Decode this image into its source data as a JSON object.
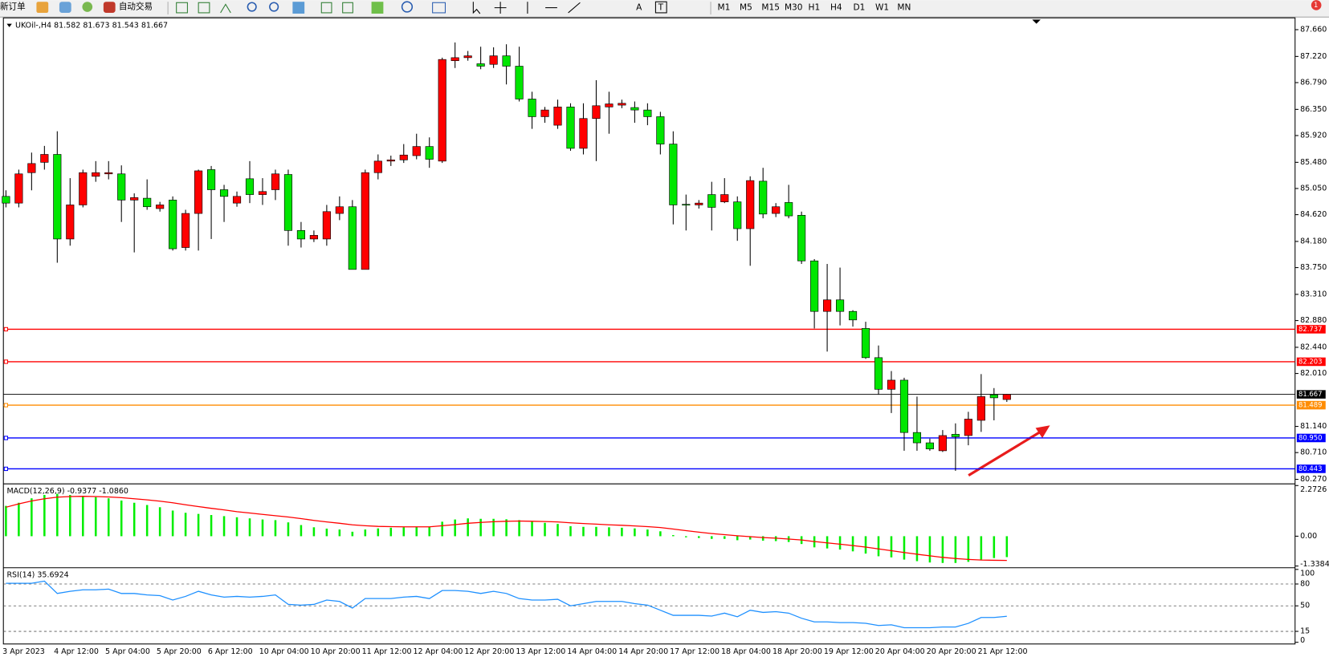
{
  "toolbar": {
    "new_order": "新订单",
    "auto_trade": "自动交易",
    "text_tools": [
      "A",
      "T"
    ],
    "timeframes": [
      "M1",
      "M5",
      "M15",
      "M30",
      "H1",
      "H4",
      "D1",
      "W1",
      "MN"
    ],
    "alert_count": 1
  },
  "chart_data": [
    {
      "type": "candlestick",
      "title": "UKOil-,H4 81.582 81.673 81.543 81.667",
      "categories": [
        "3 Apr 2023",
        null,
        null,
        null,
        "4 Apr 12:00",
        null,
        null,
        null,
        "5 Apr 04:00",
        null,
        null,
        null,
        "5 Apr 20:00",
        null,
        null,
        null,
        "6 Apr 12:00",
        null,
        null,
        null,
        "10 Apr 04:00",
        null,
        null,
        null,
        "10 Apr 20:00",
        null,
        null,
        null,
        "11 Apr 12:00",
        null,
        null,
        null,
        "12 Apr 04:00",
        null,
        null,
        null,
        "12 Apr 20:00",
        null,
        null,
        null,
        "13 Apr 12:00",
        null,
        null,
        null,
        "14 Apr 04:00",
        null,
        null,
        null,
        "14 Apr 20:00",
        null,
        null,
        null,
        "17 Apr 12:00",
        null,
        null,
        null,
        "18 Apr 04:00",
        null,
        null,
        null,
        "18 Apr 20:00",
        null,
        null,
        null,
        "19 Apr 12:00",
        null,
        null,
        null,
        "20 Apr 04:00",
        null,
        null,
        null,
        "20 Apr 20:00",
        null,
        null,
        null,
        "21 Apr 12:00",
        null,
        null
      ],
      "open": [
        84.92,
        84.81,
        85.31,
        85.48,
        85.61,
        84.22,
        84.78,
        85.25,
        85.29,
        85.29,
        84.86,
        84.89,
        84.72,
        84.86,
        84.08,
        84.64,
        85.36,
        85.03,
        84.81,
        85.21,
        84.95,
        85.03,
        85.28,
        84.36,
        84.22,
        84.22,
        84.64,
        84.75,
        83.72,
        85.31,
        85.5,
        85.52,
        85.59,
        85.74,
        85.5,
        87.15,
        87.2,
        87.1,
        87.09,
        87.23,
        87.06,
        86.52,
        86.23,
        86.09,
        86.39,
        85.71,
        86.2,
        86.39,
        86.42,
        86.38,
        86.34,
        86.23,
        85.78,
        84.79,
        84.78,
        84.95,
        84.83,
        84.83,
        84.39,
        85.17,
        84.64,
        84.82,
        84.61,
        83.86,
        83.03,
        83.22,
        83.03,
        82.75,
        82.27,
        81.75,
        81.9,
        81.04,
        80.87,
        80.74,
        81.01,
        80.99,
        81.24,
        81.66,
        81.582
      ],
      "high": [
        85.02,
        85.36,
        85.64,
        85.75,
        85.99,
        85.22,
        85.36,
        85.5,
        85.5,
        85.43,
        84.97,
        85.2,
        84.83,
        84.92,
        84.7,
        85.36,
        85.42,
        85.11,
        85.0,
        85.5,
        85.22,
        85.36,
        85.36,
        84.5,
        84.36,
        84.78,
        84.92,
        84.86,
        85.36,
        85.61,
        85.59,
        85.78,
        85.95,
        85.89,
        87.2,
        87.45,
        87.31,
        87.38,
        87.37,
        87.42,
        87.38,
        86.64,
        86.39,
        86.51,
        86.45,
        86.45,
        86.83,
        86.64,
        86.51,
        86.48,
        86.45,
        86.31,
        85.99,
        84.95,
        84.86,
        85.16,
        85.22,
        84.92,
        85.25,
        85.39,
        84.81,
        85.11,
        84.67,
        83.89,
        83.81,
        83.75,
        83.05,
        82.86,
        82.47,
        82.05,
        81.94,
        81.63,
        80.94,
        81.08,
        81.19,
        81.38,
        82.0,
        81.77,
        81.673
      ],
      "low": [
        84.74,
        84.74,
        85.02,
        85.36,
        83.83,
        84.11,
        84.74,
        85.16,
        85.2,
        84.5,
        84.0,
        84.7,
        84.67,
        84.03,
        84.03,
        84.03,
        84.22,
        84.5,
        84.75,
        84.81,
        84.78,
        84.86,
        84.11,
        84.08,
        84.17,
        84.11,
        84.53,
        83.72,
        83.72,
        85.2,
        85.42,
        85.47,
        85.53,
        85.39,
        85.47,
        87.03,
        87.15,
        87.01,
        87.03,
        86.76,
        86.48,
        86.03,
        86.13,
        86.03,
        85.67,
        85.61,
        85.5,
        85.95,
        86.37,
        86.13,
        86.09,
        85.61,
        84.46,
        84.36,
        84.72,
        84.36,
        84.81,
        84.19,
        83.78,
        84.56,
        84.58,
        84.56,
        83.81,
        82.75,
        82.37,
        82.8,
        82.78,
        82.25,
        81.66,
        81.36,
        80.74,
        80.74,
        80.74,
        80.72,
        80.41,
        80.83,
        81.05,
        81.24,
        81.543
      ],
      "close": [
        84.81,
        85.29,
        85.46,
        85.61,
        84.22,
        84.78,
        85.31,
        85.31,
        85.31,
        84.86,
        84.9,
        84.75,
        84.78,
        84.06,
        84.64,
        85.34,
        85.03,
        84.92,
        84.92,
        84.95,
        85.0,
        85.29,
        84.36,
        84.22,
        84.28,
        84.67,
        84.75,
        83.72,
        85.31,
        85.5,
        85.52,
        85.6,
        85.74,
        85.53,
        87.17,
        87.2,
        87.23,
        87.06,
        87.23,
        87.06,
        86.52,
        86.23,
        86.34,
        86.39,
        85.71,
        86.2,
        86.41,
        86.44,
        86.45,
        86.34,
        86.23,
        85.78,
        84.78,
        84.78,
        84.81,
        84.74,
        84.95,
        84.39,
        85.18,
        84.63,
        84.75,
        84.6,
        83.86,
        83.03,
        83.22,
        83.03,
        82.89,
        82.27,
        81.75,
        81.9,
        81.04,
        80.87,
        80.77,
        80.99,
        80.97,
        81.26,
        81.63,
        81.61,
        81.667
      ],
      "up_color": "#ff0000",
      "down_color": "#00e600",
      "ylim": [
        80.21,
        87.84
      ],
      "yticks": [
        {
          "value": 87.66,
          "label": "87.660"
        },
        {
          "value": 87.22,
          "label": "87.220"
        },
        {
          "value": 86.79,
          "label": "86.790"
        },
        {
          "value": 86.35,
          "label": "86.350"
        },
        {
          "value": 85.92,
          "label": "85.920"
        },
        {
          "value": 85.48,
          "label": "85.480"
        },
        {
          "value": 85.05,
          "label": "85.050"
        },
        {
          "value": 84.62,
          "label": "84.620"
        },
        {
          "value": 84.18,
          "label": "84.180"
        },
        {
          "value": 83.75,
          "label": "83.750"
        },
        {
          "value": 83.31,
          "label": "83.310"
        },
        {
          "value": 82.88,
          "label": "82.880"
        },
        {
          "value": 82.44,
          "label": "82.440"
        },
        {
          "value": 82.01,
          "label": "82.010"
        },
        {
          "value": 81.14,
          "label": "81.140"
        },
        {
          "value": 80.71,
          "label": "80.710"
        },
        {
          "value": 80.27,
          "label": "80.270"
        }
      ],
      "levels": [
        {
          "value": 82.737,
          "color": "#ff0000"
        },
        {
          "value": 82.203,
          "color": "#ff0000"
        },
        {
          "value": 81.667,
          "color": "#000000"
        },
        {
          "value": 81.489,
          "color": "#ff8c00"
        },
        {
          "value": 80.95,
          "label": "80.950",
          "color": "#0000ff"
        },
        {
          "value": 80.443,
          "color": "#0000ff"
        }
      ]
    },
    {
      "type": "macd",
      "title": "MACD(12,26,9) -0.9377 -1.0860",
      "series": [
        {
          "type": "bar",
          "color": "#00ee00",
          "values": [
            1.36,
            1.5,
            1.7,
            1.85,
            1.9,
            1.85,
            1.8,
            1.75,
            1.7,
            1.6,
            1.5,
            1.4,
            1.3,
            1.15,
            1.05,
            1.0,
            0.95,
            0.9,
            0.85,
            0.8,
            0.75,
            0.72,
            0.62,
            0.5,
            0.4,
            0.34,
            0.3,
            0.2,
            0.3,
            0.35,
            0.38,
            0.4,
            0.42,
            0.42,
            0.65,
            0.75,
            0.8,
            0.78,
            0.78,
            0.76,
            0.72,
            0.65,
            0.6,
            0.55,
            0.45,
            0.42,
            0.42,
            0.4,
            0.38,
            0.35,
            0.3,
            0.22,
            0.05,
            -0.05,
            -0.08,
            -0.12,
            -0.12,
            -0.18,
            -0.15,
            -0.2,
            -0.22,
            -0.26,
            -0.35,
            -0.5,
            -0.55,
            -0.6,
            -0.68,
            -0.78,
            -0.9,
            -0.95,
            -1.05,
            -1.12,
            -1.18,
            -1.2,
            -1.2,
            -1.15,
            -1.05,
            -0.98,
            -0.9377
          ]
        },
        {
          "type": "line",
          "color": "#ff0000",
          "values": [
            1.3,
            1.45,
            1.58,
            1.68,
            1.75,
            1.78,
            1.79,
            1.78,
            1.76,
            1.73,
            1.68,
            1.63,
            1.57,
            1.5,
            1.41,
            1.33,
            1.25,
            1.18,
            1.1,
            1.04,
            0.98,
            0.92,
            0.86,
            0.79,
            0.71,
            0.64,
            0.58,
            0.51,
            0.47,
            0.44,
            0.43,
            0.42,
            0.42,
            0.42,
            0.47,
            0.52,
            0.58,
            0.62,
            0.65,
            0.67,
            0.68,
            0.67,
            0.66,
            0.64,
            0.6,
            0.57,
            0.54,
            0.51,
            0.49,
            0.46,
            0.43,
            0.39,
            0.32,
            0.25,
            0.18,
            0.12,
            0.07,
            0.02,
            -0.02,
            -0.06,
            -0.09,
            -0.13,
            -0.17,
            -0.24,
            -0.3,
            -0.36,
            -0.42,
            -0.49,
            -0.57,
            -0.65,
            -0.73,
            -0.81,
            -0.88,
            -0.95,
            -1.0,
            -1.04,
            -1.07,
            -1.08,
            -1.086
          ]
        }
      ],
      "ylim": [
        -1.3384,
        2.2726
      ],
      "yticks": [
        2.2726,
        {
          "value": 0,
          "label": "0.00"
        },
        -1.3384
      ]
    },
    {
      "type": "line",
      "title": "RSI(14) 35.6924",
      "series": [
        {
          "color": "#1e90ff",
          "values": [
            81,
            81,
            81,
            84,
            67,
            70,
            72,
            72,
            73,
            67,
            67,
            65,
            64,
            58,
            63,
            70,
            65,
            62,
            63,
            62,
            63,
            65,
            52,
            51,
            52,
            58,
            56,
            47,
            60,
            60,
            60,
            62,
            63,
            60,
            71,
            71,
            70,
            67,
            70,
            67,
            60,
            58,
            58,
            59,
            50,
            53,
            56,
            56,
            56,
            53,
            51,
            44,
            37,
            37,
            37,
            36,
            40,
            35,
            44,
            41,
            42,
            40,
            33,
            28,
            28,
            27,
            27,
            26,
            23,
            24,
            20,
            20,
            20,
            21,
            21,
            26,
            34,
            34,
            35.6924
          ]
        }
      ],
      "ylim": [
        0,
        100
      ],
      "yticks": [
        100,
        80,
        50,
        15,
        0
      ],
      "levels": [
        80,
        50,
        15
      ]
    }
  ]
}
